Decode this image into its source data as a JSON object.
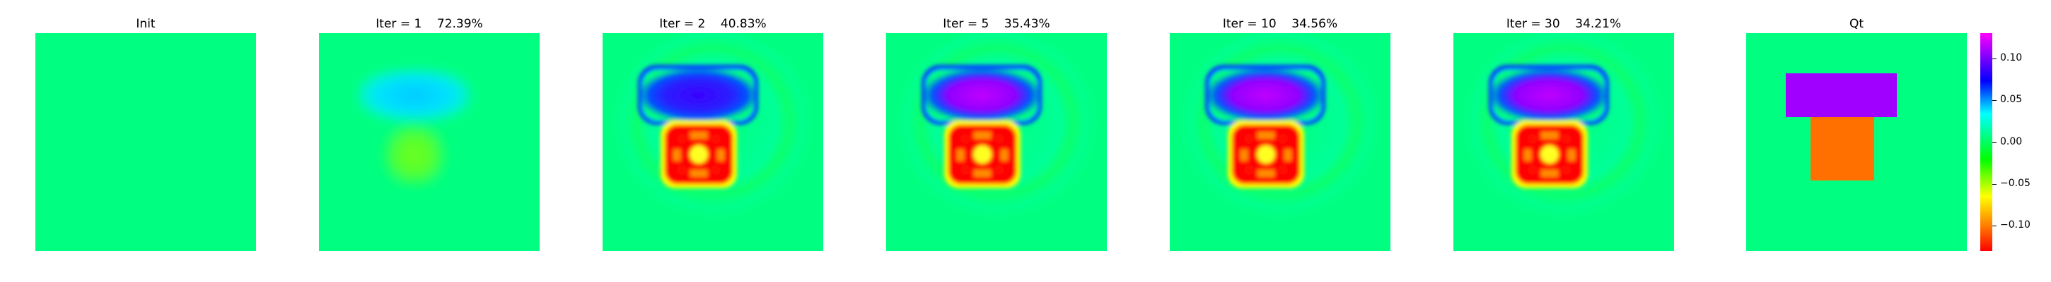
{
  "chart_data": {
    "type": "heatmap",
    "panels": [
      {
        "title": "Init",
        "iteration": null,
        "error": null,
        "reconstruction": 0.0
      },
      {
        "title": "Iter = 1    72.39%",
        "iteration": 1,
        "error": "72.39%",
        "reconstruction": 0.25
      },
      {
        "title": "Iter = 2    40.83%",
        "iteration": 2,
        "error": "40.83%",
        "reconstruction": 0.85
      },
      {
        "title": "Iter = 5    35.43%",
        "iteration": 5,
        "error": "35.43%",
        "reconstruction": 0.95
      },
      {
        "title": "Iter = 10    34.56%",
        "iteration": 10,
        "error": "34.56%",
        "reconstruction": 0.98
      },
      {
        "title": "Iter = 30    34.21%",
        "iteration": 30,
        "error": "34.21%",
        "reconstruction": 1.0
      },
      {
        "title": "Qt",
        "iteration": null,
        "error": null,
        "reconstruction": "true"
      }
    ],
    "colormap": "hsv",
    "colorbar": {
      "ticks": [
        "0.10",
        "0.05",
        "0.00",
        "−0.05",
        "−0.10"
      ],
      "tick_values": [
        0.1,
        0.05,
        0.0,
        -0.05,
        -0.1
      ],
      "range": [
        -0.13,
        0.13
      ]
    },
    "true_model": {
      "upper_block_value": 0.09,
      "lower_block_value": -0.07,
      "background_value": 0.0
    },
    "axes": "off",
    "grid": false
  },
  "colors": {
    "background": "#00ff80",
    "upper_block": "#a000ff",
    "lower_block": "#ff7000"
  }
}
